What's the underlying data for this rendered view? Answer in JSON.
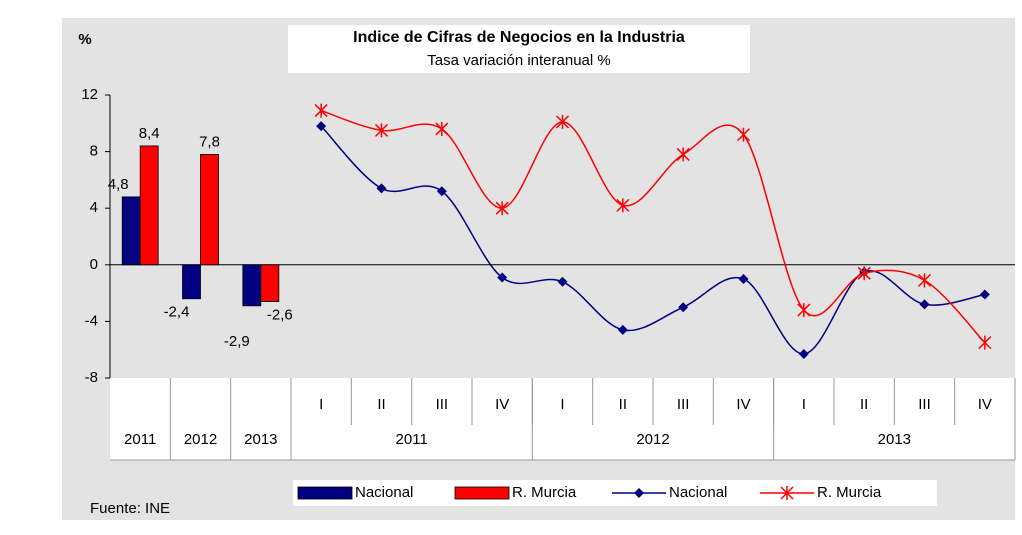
{
  "chart_data": {
    "type": "bar",
    "title": "Indice de Cifras de Negocios en la Industria",
    "subtitle": "Tasa variación interanual %",
    "y_label": "%",
    "source": "Fuente: INE",
    "categories": [
      "2011",
      "2012",
      "2013",
      "I",
      "II",
      "III",
      "IV",
      "I",
      "II",
      "III",
      "IV",
      "I",
      "II",
      "III",
      "IV"
    ],
    "quarter_groups": [
      "2011",
      "2012",
      "2013"
    ],
    "ylim": [
      -8,
      12
    ],
    "yticks": [
      12,
      8,
      4,
      0,
      -4,
      -8
    ],
    "series": [
      {
        "name": "Nacional",
        "type": "bar",
        "color": "#000080",
        "values": [
          4.8,
          -2.4,
          -2.9,
          null,
          null,
          null,
          null,
          null,
          null,
          null,
          null,
          null,
          null,
          null,
          null
        ],
        "value_labels": [
          "4,8",
          "-2,4",
          "-2,9",
          null,
          null,
          null,
          null,
          null,
          null,
          null,
          null,
          null,
          null,
          null,
          null
        ]
      },
      {
        "name": "R. Murcia",
        "type": "bar",
        "color": "#ff0000",
        "values": [
          8.4,
          7.8,
          -2.6,
          null,
          null,
          null,
          null,
          null,
          null,
          null,
          null,
          null,
          null,
          null,
          null
        ],
        "value_labels": [
          "8,4",
          "7,8",
          "-2,6",
          null,
          null,
          null,
          null,
          null,
          null,
          null,
          null,
          null,
          null,
          null,
          null
        ]
      },
      {
        "name": "Nacional",
        "type": "line",
        "color": "#000080",
        "marker": "diamond",
        "values": [
          null,
          null,
          null,
          9.8,
          5.4,
          5.2,
          -0.9,
          -1.2,
          -4.6,
          -3.0,
          -1.0,
          -6.3,
          -0.5,
          -2.8,
          -2.1
        ]
      },
      {
        "name": "R. Murcia",
        "type": "line",
        "color": "#ff0000",
        "marker": "star",
        "values": [
          null,
          null,
          null,
          10.9,
          9.5,
          9.6,
          4.0,
          10.1,
          4.2,
          7.8,
          9.2,
          -3.2,
          -0.6,
          -1.1,
          -5.5
        ]
      }
    ]
  }
}
